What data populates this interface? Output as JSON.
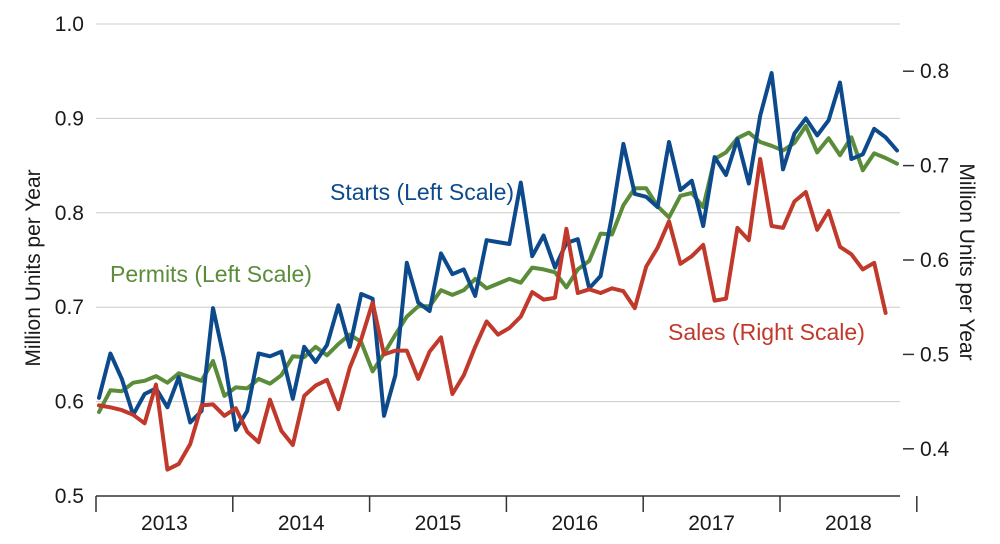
{
  "chart_data": {
    "type": "line",
    "title": "",
    "xlabel": "",
    "ylabel_left": "Million Units  per Year",
    "ylabel_right": "Million Units  per Year",
    "ylim_left": [
      0.5,
      1.0
    ],
    "ylim_right": [
      0.35,
      0.85
    ],
    "yticks_left": [
      "0.5",
      "0.6",
      "0.7",
      "0.8",
      "0.9",
      "1.0"
    ],
    "yticks_right": [
      "0.4",
      "0.5",
      "0.6",
      "0.7",
      "0.8"
    ],
    "grid": "horizontal",
    "x_start": "2013-01",
    "x_end": "2018-09",
    "years": [
      "2013",
      "2014",
      "2015",
      "2016",
      "2017",
      "2018"
    ],
    "series": [
      {
        "name": "Starts (Left Scale)",
        "axis": "left",
        "color": "#0d4a8c",
        "values": [
          0.604,
          0.651,
          0.624,
          0.586,
          0.608,
          0.614,
          0.594,
          0.626,
          0.578,
          0.59,
          0.699,
          0.644,
          0.57,
          0.59,
          0.651,
          0.648,
          0.653,
          0.603,
          0.658,
          0.642,
          0.66,
          0.702,
          0.658,
          0.714,
          0.709,
          0.585,
          0.628,
          0.747,
          0.705,
          0.696,
          0.757,
          0.735,
          0.74,
          0.712,
          0.771,
          0.769,
          0.767,
          0.832,
          0.754,
          0.776,
          0.742,
          0.768,
          0.772,
          0.72,
          0.733,
          0.797,
          0.873,
          0.82,
          0.817,
          0.806,
          0.875,
          0.824,
          0.834,
          0.786,
          0.859,
          0.84,
          0.878,
          0.831,
          0.903,
          0.948,
          0.846,
          0.884,
          0.9,
          0.882,
          0.898,
          0.938,
          0.857,
          0.862,
          0.889,
          0.88,
          0.866
        ]
      },
      {
        "name": "Permits (Left Scale)",
        "axis": "left",
        "color": "#5b8c3a",
        "values": [
          0.589,
          0.612,
          0.611,
          0.62,
          0.622,
          0.627,
          0.62,
          0.63,
          0.626,
          0.622,
          0.643,
          0.606,
          0.615,
          0.614,
          0.624,
          0.619,
          0.628,
          0.648,
          0.647,
          0.658,
          0.649,
          0.661,
          0.671,
          0.663,
          0.632,
          0.651,
          0.671,
          0.69,
          0.701,
          0.701,
          0.718,
          0.713,
          0.718,
          0.73,
          0.72,
          0.725,
          0.73,
          0.726,
          0.742,
          0.74,
          0.737,
          0.721,
          0.74,
          0.749,
          0.778,
          0.777,
          0.808,
          0.826,
          0.826,
          0.807,
          0.795,
          0.818,
          0.821,
          0.806,
          0.857,
          0.864,
          0.879,
          0.885,
          0.875,
          0.871,
          0.866,
          0.874,
          0.892,
          0.864,
          0.879,
          0.861,
          0.88,
          0.845,
          0.863,
          0.858,
          0.852
        ]
      },
      {
        "name": "Sales (Right Scale)",
        "axis": "right",
        "color": "#c0392b",
        "values": [
          0.446,
          0.444,
          0.441,
          0.436,
          0.427,
          0.468,
          0.378,
          0.384,
          0.405,
          0.446,
          0.447,
          0.435,
          0.443,
          0.418,
          0.407,
          0.452,
          0.419,
          0.404,
          0.456,
          0.467,
          0.473,
          0.442,
          0.486,
          0.516,
          0.555,
          0.5,
          0.504,
          0.504,
          0.474,
          0.503,
          0.518,
          0.458,
          0.478,
          0.508,
          0.535,
          0.521,
          0.528,
          0.54,
          0.566,
          0.558,
          0.56,
          0.633,
          0.565,
          0.569,
          0.565,
          0.57,
          0.567,
          0.549,
          0.593,
          0.613,
          0.641,
          0.596,
          0.604,
          0.616,
          0.557,
          0.559,
          0.634,
          0.621,
          0.707,
          0.636,
          0.634,
          0.662,
          0.672,
          0.632,
          0.652,
          0.614,
          0.606,
          0.59,
          0.597,
          0.544
        ]
      }
    ]
  }
}
